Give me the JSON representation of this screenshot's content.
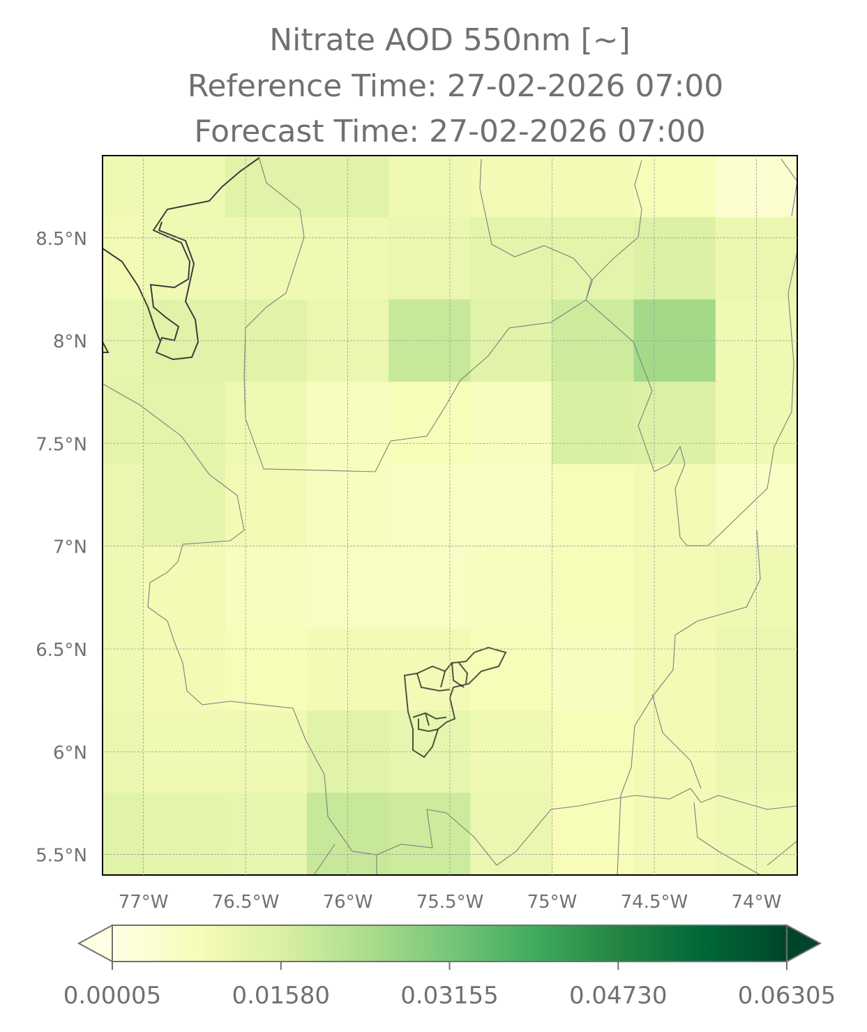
{
  "chart_data": {
    "type": "heatmap",
    "title": "Nitrate AOD 550nm [~]",
    "reference_time": "Reference Time: 27-02-2026 07:00",
    "forecast_time": "Forecast Time: 27-02-2026 07:00",
    "xlim": [
      -77.2,
      -73.8
    ],
    "ylim": [
      5.4,
      8.9
    ],
    "xticks": [
      {
        "value": -77,
        "label": "77°W"
      },
      {
        "value": -76.5,
        "label": "76.5°W"
      },
      {
        "value": -76,
        "label": "76°W"
      },
      {
        "value": -75.5,
        "label": "75.5°W"
      },
      {
        "value": -75,
        "label": "75°W"
      },
      {
        "value": -74.5,
        "label": "74.5°W"
      },
      {
        "value": -74,
        "label": "74°W"
      }
    ],
    "yticks": [
      {
        "value": 8.5,
        "label": "8.5°N"
      },
      {
        "value": 8,
        "label": "8°N"
      },
      {
        "value": 7.5,
        "label": "7.5°N"
      },
      {
        "value": 7,
        "label": "7°N"
      },
      {
        "value": 6.5,
        "label": "6.5°N"
      },
      {
        "value": 6,
        "label": "6°N"
      },
      {
        "value": 5.5,
        "label": "5.5°N"
      }
    ],
    "grid": true,
    "xedges": [
      -77.4,
      -77.0,
      -76.6,
      -76.2,
      -75.8,
      -75.4,
      -75.0,
      -74.6,
      -74.2,
      -73.8
    ],
    "yedges": [
      9.0,
      8.6,
      8.2,
      7.8,
      7.4,
      7.0,
      6.6,
      6.2,
      5.8,
      5.4
    ],
    "values": [
      [
        0.01,
        0.01,
        0.014,
        0.014,
        0.01,
        0.009,
        0.009,
        0.008,
        0.004
      ],
      [
        0.009,
        0.01,
        0.01,
        0.01,
        0.011,
        0.013,
        0.013,
        0.015,
        0.011
      ],
      [
        0.012,
        0.014,
        0.014,
        0.011,
        0.019,
        0.014,
        0.018,
        0.025,
        0.01
      ],
      [
        0.013,
        0.013,
        0.01,
        0.007,
        0.008,
        0.007,
        0.016,
        0.015,
        0.01
      ],
      [
        0.011,
        0.013,
        0.009,
        0.007,
        0.006,
        0.006,
        0.008,
        0.009,
        0.006
      ],
      [
        0.01,
        0.009,
        0.007,
        0.006,
        0.006,
        0.007,
        0.008,
        0.009,
        0.01
      ],
      [
        0.01,
        0.009,
        0.008,
        0.009,
        0.009,
        0.008,
        0.007,
        0.009,
        0.011
      ],
      [
        0.011,
        0.01,
        0.01,
        0.014,
        0.012,
        0.01,
        0.008,
        0.009,
        0.011
      ],
      [
        0.014,
        0.013,
        0.012,
        0.019,
        0.018,
        0.011,
        0.008,
        0.009,
        0.01
      ]
    ],
    "clim": [
      5e-05,
      0.06305
    ],
    "colormap": [
      "#ffffe5",
      "#f7fcb9",
      "#d9f0a3",
      "#addd8e",
      "#78c679",
      "#41ab5d",
      "#238443",
      "#006837",
      "#004529"
    ],
    "colorbar_ticks": [
      5e-05,
      {
        "value": 0.0158,
        "label": "0.01580"
      },
      0.03155,
      {
        "value": 0.0473,
        "label": "0.04730"
      },
      0.06305
    ]
  }
}
